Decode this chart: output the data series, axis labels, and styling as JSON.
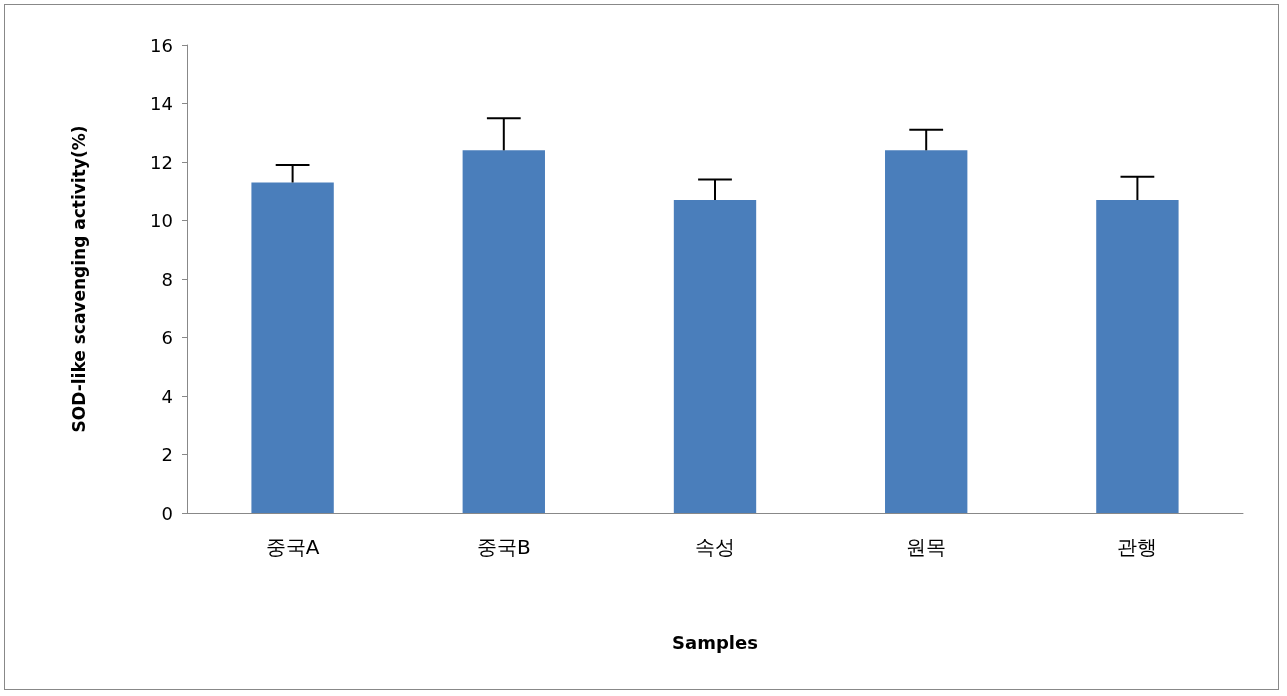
{
  "chart_data": {
    "type": "bar",
    "xlabel": "Samples",
    "ylabel": "SOD-like scavenging activity(%)",
    "categories": [
      "중국A",
      "중국B",
      "속성",
      "원목",
      "관행"
    ],
    "values": [
      11.3,
      12.4,
      10.7,
      12.4,
      10.7
    ],
    "errors": [
      [
        11.3,
        11.9
      ],
      [
        12.4,
        13.5
      ],
      [
        10.7,
        11.4
      ],
      [
        12.4,
        13.1
      ],
      [
        10.7,
        11.5
      ]
    ],
    "color": "#4a7ebb",
    "ylim": [
      0,
      16
    ],
    "yticks": [
      0,
      2,
      4,
      6,
      8,
      10,
      12,
      14,
      16
    ],
    "grid": false
  }
}
